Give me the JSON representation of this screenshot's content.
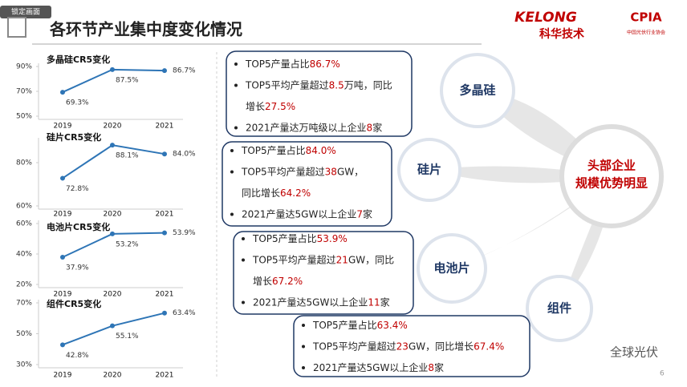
{
  "header": {
    "lock_tag": "锁定画面",
    "title": "各环节产业集中度变化情况",
    "logo_left": "KELONG",
    "logo_left_sub": "科华技术",
    "logo_right": "CPIA",
    "logo_right_sub": "中国光伏行业协会"
  },
  "chart_data": [
    {
      "type": "line",
      "title": "多晶硅CR5变化",
      "categories": [
        "2019",
        "2020",
        "2021"
      ],
      "values": [
        69.3,
        87.5,
        86.7
      ],
      "value_labels": [
        "69.3%",
        "87.5%",
        "86.7%"
      ],
      "color": "#2e75b6",
      "ylim": [
        50,
        90
      ],
      "yticks": [
        {
          "value": 50,
          "label": "50%"
        },
        {
          "value": 70,
          "label": "70%"
        },
        {
          "value": 90,
          "label": "90%"
        }
      ]
    },
    {
      "type": "line",
      "title": "硅片CR5变化",
      "categories": [
        "2019",
        "2020",
        "2021"
      ],
      "values": [
        72.8,
        88.1,
        84.0
      ],
      "value_labels": [
        "72.8%",
        "88.1%",
        "84.0%"
      ],
      "color": "#2e75b6",
      "ylim": [
        60,
        90
      ],
      "yticks": [
        {
          "value": 60,
          "label": "60%"
        },
        {
          "value": 80,
          "label": "80%"
        }
      ]
    },
    {
      "type": "line",
      "title": "电池片CR5变化",
      "categories": [
        "2019",
        "2020",
        "2021"
      ],
      "values": [
        37.9,
        53.2,
        53.9
      ],
      "value_labels": [
        "37.9%",
        "53.2%",
        "53.9%"
      ],
      "color": "#2e75b6",
      "ylim": [
        20,
        60
      ],
      "yticks": [
        {
          "value": 20,
          "label": "20%"
        },
        {
          "value": 40,
          "label": "40%"
        },
        {
          "value": 60,
          "label": "60%"
        }
      ]
    },
    {
      "type": "line",
      "title": "组件CR5变化",
      "categories": [
        "2019",
        "2020",
        "2021"
      ],
      "values": [
        42.8,
        55.1,
        63.4
      ],
      "value_labels": [
        "42.8%",
        "55.1%",
        "63.4%"
      ],
      "color": "#2e75b6",
      "ylim": [
        30,
        70
      ],
      "yticks": [
        {
          "value": 30,
          "label": "30%"
        },
        {
          "value": 50,
          "label": "50%"
        },
        {
          "value": 70,
          "label": "70%"
        }
      ]
    }
  ],
  "boxes": [
    {
      "items": [
        [
          [
            "TOP5产量占比",
            "86.7%"
          ]
        ],
        [
          [
            "TOP5平均产量超过",
            "8.5",
            "万吨，同比"
          ],
          [
            "增长",
            "27.5%"
          ]
        ],
        [
          [
            "2021产量达万吨级以上企业",
            "8",
            "家"
          ]
        ]
      ]
    },
    {
      "items": [
        [
          [
            "TOP5产量占比",
            "84.0%"
          ]
        ],
        [
          [
            "TOP5平均产量超过",
            "38",
            "GW，"
          ],
          [
            "同比增长",
            "64.2%"
          ]
        ],
        [
          [
            "2021产量达5GW以上企业",
            "7",
            "家"
          ]
        ]
      ]
    },
    {
      "items": [
        [
          [
            "TOP5产量占比",
            "53.9%"
          ]
        ],
        [
          [
            "TOP5平均产量超过",
            "21",
            "GW，同比"
          ],
          [
            "增长",
            "67.2%"
          ]
        ],
        [
          [
            "2021产量达5GW以上企业",
            "11",
            "家"
          ]
        ]
      ]
    },
    {
      "items": [
        [
          [
            "TOP5产量占比",
            "63.4%"
          ]
        ],
        [
          [
            "TOP5平均产量超过",
            "23",
            "GW，同比增长",
            "67.4%"
          ]
        ],
        [
          [
            "2021产量达5GW以上企业",
            "8",
            "家"
          ]
        ]
      ]
    }
  ],
  "diagram": {
    "center": [
      "头部企业",
      "规模优势明显"
    ],
    "nodes": [
      "多晶硅",
      "硅片",
      "电池片",
      "组件"
    ]
  },
  "watermark": "全球光伏",
  "page_number": "6"
}
